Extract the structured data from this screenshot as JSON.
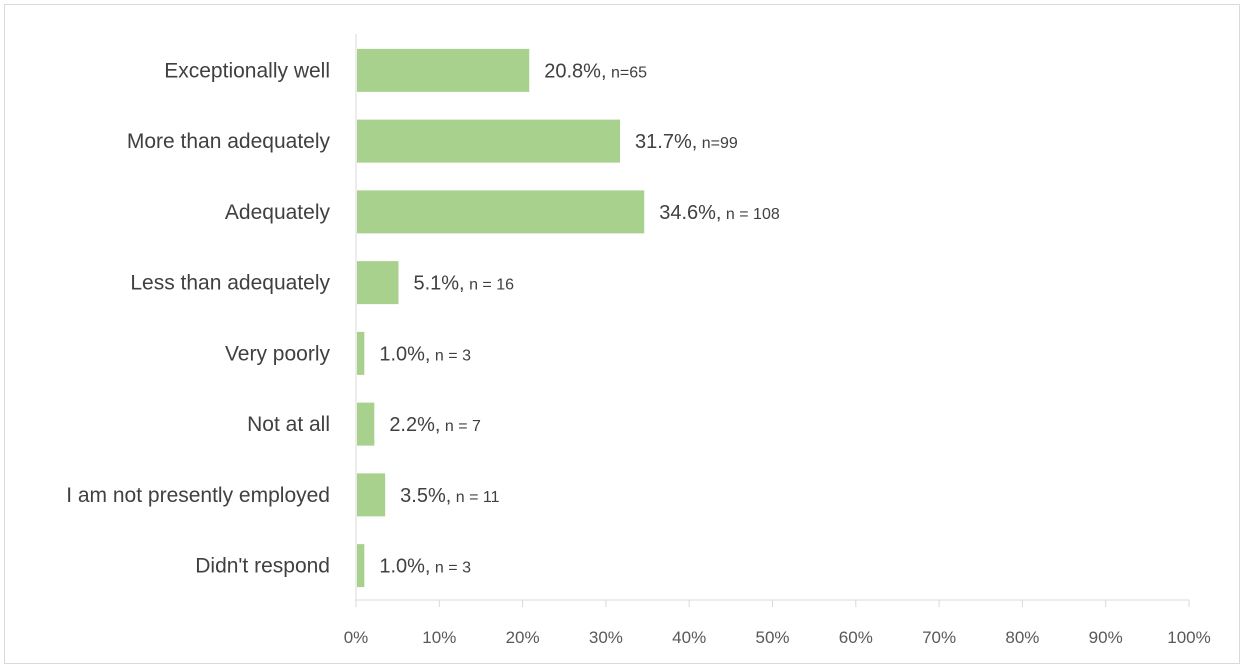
{
  "chart_data": {
    "type": "bar",
    "orientation": "horizontal",
    "categories": [
      "Exceptionally well",
      "More than adequately",
      "Adequately",
      "Less than adequately",
      "Very poorly",
      "Not at all",
      "I am not presently employed",
      "Didn't respond"
    ],
    "values": [
      20.8,
      31.7,
      34.6,
      5.1,
      1.0,
      2.2,
      3.5,
      1.0
    ],
    "data_labels": [
      {
        "pct": "20.8%,",
        "n": " n=65"
      },
      {
        "pct": "31.7%,",
        "n": " n=99"
      },
      {
        "pct": "34.6%,",
        "n": " n = 108"
      },
      {
        "pct": "5.1%,",
        "n": " n = 16"
      },
      {
        "pct": "1.0%,",
        "n": " n = 3"
      },
      {
        "pct": "2.2%,",
        "n": " n = 7"
      },
      {
        "pct": "3.5%,",
        "n": " n = 11"
      },
      {
        "pct": "1.0%,",
        "n": " n = 3"
      }
    ],
    "x_ticks": [
      "0%",
      "10%",
      "20%",
      "30%",
      "40%",
      "50%",
      "60%",
      "70%",
      "80%",
      "90%",
      "100%"
    ],
    "xlim": [
      0,
      100
    ],
    "title": "",
    "xlabel": "",
    "ylabel": "",
    "grid": false,
    "bar_color": "#a9d18e",
    "axis_color": "#d9d9d9"
  }
}
